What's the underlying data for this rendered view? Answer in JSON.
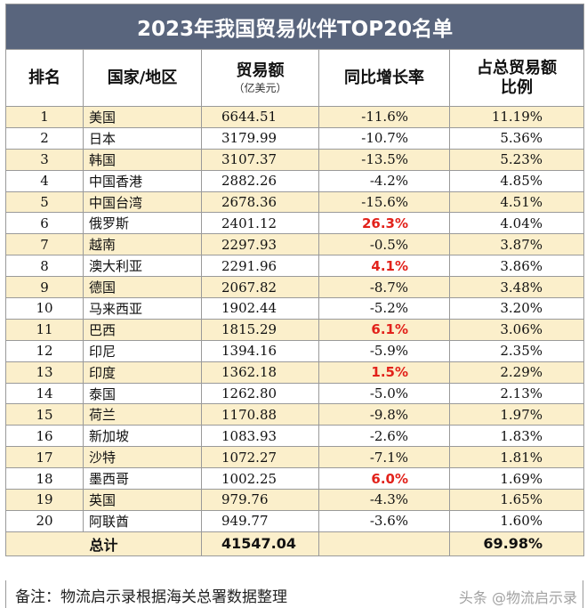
{
  "title": "2023年我国贸易伙伴TOP20名单",
  "headers": {
    "rank": "排名",
    "country": "国家/地区",
    "value": "贸易额",
    "value_unit": "（亿美元）",
    "growth": "同比增长率",
    "share_line1": "占总贸易额",
    "share_line2": "比例"
  },
  "rows": [
    {
      "rank": "1",
      "country": "美国",
      "value": "6644.51",
      "growth": "-11.6%",
      "share": "11.19%"
    },
    {
      "rank": "2",
      "country": "日本",
      "value": "3179.99",
      "growth": "-10.7%",
      "share": "5.36%"
    },
    {
      "rank": "3",
      "country": "韩国",
      "value": "3107.37",
      "growth": "-13.5%",
      "share": "5.23%"
    },
    {
      "rank": "4",
      "country": "中国香港",
      "value": "2882.26",
      "growth": "-4.2%",
      "share": "4.85%"
    },
    {
      "rank": "5",
      "country": "中国台湾",
      "value": "2678.36",
      "growth": "-15.6%",
      "share": "4.51%"
    },
    {
      "rank": "6",
      "country": "俄罗斯",
      "value": "2401.12",
      "growth": "26.3%",
      "share": "4.04%"
    },
    {
      "rank": "7",
      "country": "越南",
      "value": "2297.93",
      "growth": "-0.5%",
      "share": "3.87%"
    },
    {
      "rank": "8",
      "country": "澳大利亚",
      "value": "2291.96",
      "growth": "4.1%",
      "share": "3.86%"
    },
    {
      "rank": "9",
      "country": "德国",
      "value": "2067.82",
      "growth": "-8.7%",
      "share": "3.48%"
    },
    {
      "rank": "10",
      "country": "马来西亚",
      "value": "1902.44",
      "growth": "-5.2%",
      "share": "3.20%"
    },
    {
      "rank": "11",
      "country": "巴西",
      "value": "1815.29",
      "growth": "6.1%",
      "share": "3.06%"
    },
    {
      "rank": "12",
      "country": "印尼",
      "value": "1394.16",
      "growth": "-5.9%",
      "share": "2.35%"
    },
    {
      "rank": "13",
      "country": "印度",
      "value": "1362.18",
      "growth": "1.5%",
      "share": "2.29%"
    },
    {
      "rank": "14",
      "country": "泰国",
      "value": "1262.80",
      "growth": "-5.0%",
      "share": "2.13%"
    },
    {
      "rank": "15",
      "country": "荷兰",
      "value": "1170.88",
      "growth": "-9.8%",
      "share": "1.97%"
    },
    {
      "rank": "16",
      "country": "新加坡",
      "value": "1083.93",
      "growth": "-2.6%",
      "share": "1.83%"
    },
    {
      "rank": "17",
      "country": "沙特",
      "value": "1072.27",
      "growth": "-7.1%",
      "share": "1.81%"
    },
    {
      "rank": "18",
      "country": "墨西哥",
      "value": "1002.25",
      "growth": "6.0%",
      "share": "1.69%"
    },
    {
      "rank": "19",
      "country": "英国",
      "value": "979.76",
      "growth": "-4.3%",
      "share": "1.65%"
    },
    {
      "rank": "20",
      "country": "阿联酋",
      "value": "949.77",
      "growth": "-3.6%",
      "share": "1.60%"
    }
  ],
  "total": {
    "label": "总计",
    "value": "41547.04",
    "share": "69.98%"
  },
  "note": "备注：物流启示录根据海关总署数据整理",
  "watermark": "头条 @物流启示录",
  "colors": {
    "title_bg": "#59657d",
    "row_highlight": "#fbefcb",
    "positive_growth": "#e2221b",
    "grid_line": "#9a9a9a"
  }
}
